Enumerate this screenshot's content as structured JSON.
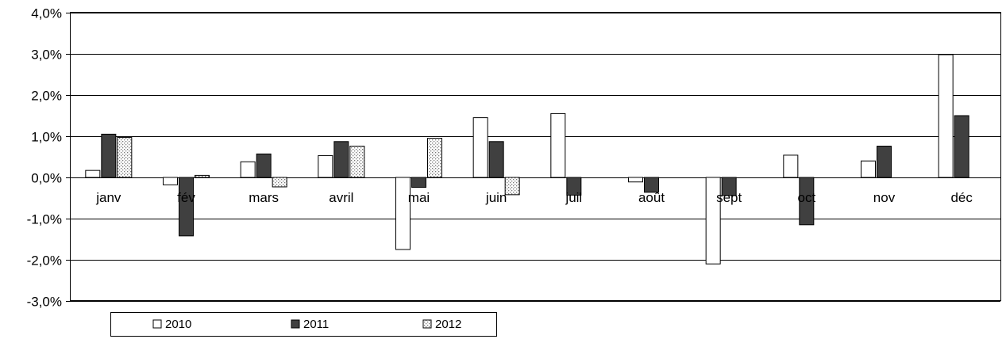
{
  "chart_data": {
    "type": "bar",
    "categories": [
      "janv",
      "fév",
      "mars",
      "avril",
      "mai",
      "juin",
      "juil",
      "août",
      "sept",
      "oct",
      "nov",
      "déc"
    ],
    "series": [
      {
        "name": "2010",
        "values": [
          0.17,
          -0.18,
          0.38,
          0.53,
          -1.75,
          1.45,
          1.55,
          -0.11,
          -2.1,
          0.54,
          0.4,
          2.98
        ],
        "color": "#ffffff",
        "pattern": "solid"
      },
      {
        "name": "2011",
        "values": [
          1.05,
          -1.42,
          0.57,
          0.87,
          -0.24,
          0.87,
          -0.43,
          -0.36,
          -0.44,
          -1.15,
          0.76,
          1.5
        ],
        "color": "#404040",
        "pattern": "solid"
      },
      {
        "name": "2012",
        "values": [
          0.97,
          0.05,
          -0.23,
          0.76,
          0.95,
          -0.42,
          null,
          null,
          null,
          null,
          null,
          null
        ],
        "color": "#d9d9d9",
        "pattern": "dotted"
      }
    ],
    "y_ticks": [
      "4,0%",
      "3,0%",
      "2,0%",
      "1,0%",
      "0,0%",
      "-1,0%",
      "-2,0%",
      "-3,0%"
    ],
    "ylim": [
      -3,
      4
    ],
    "grid": true,
    "legend": "bottom-left"
  }
}
